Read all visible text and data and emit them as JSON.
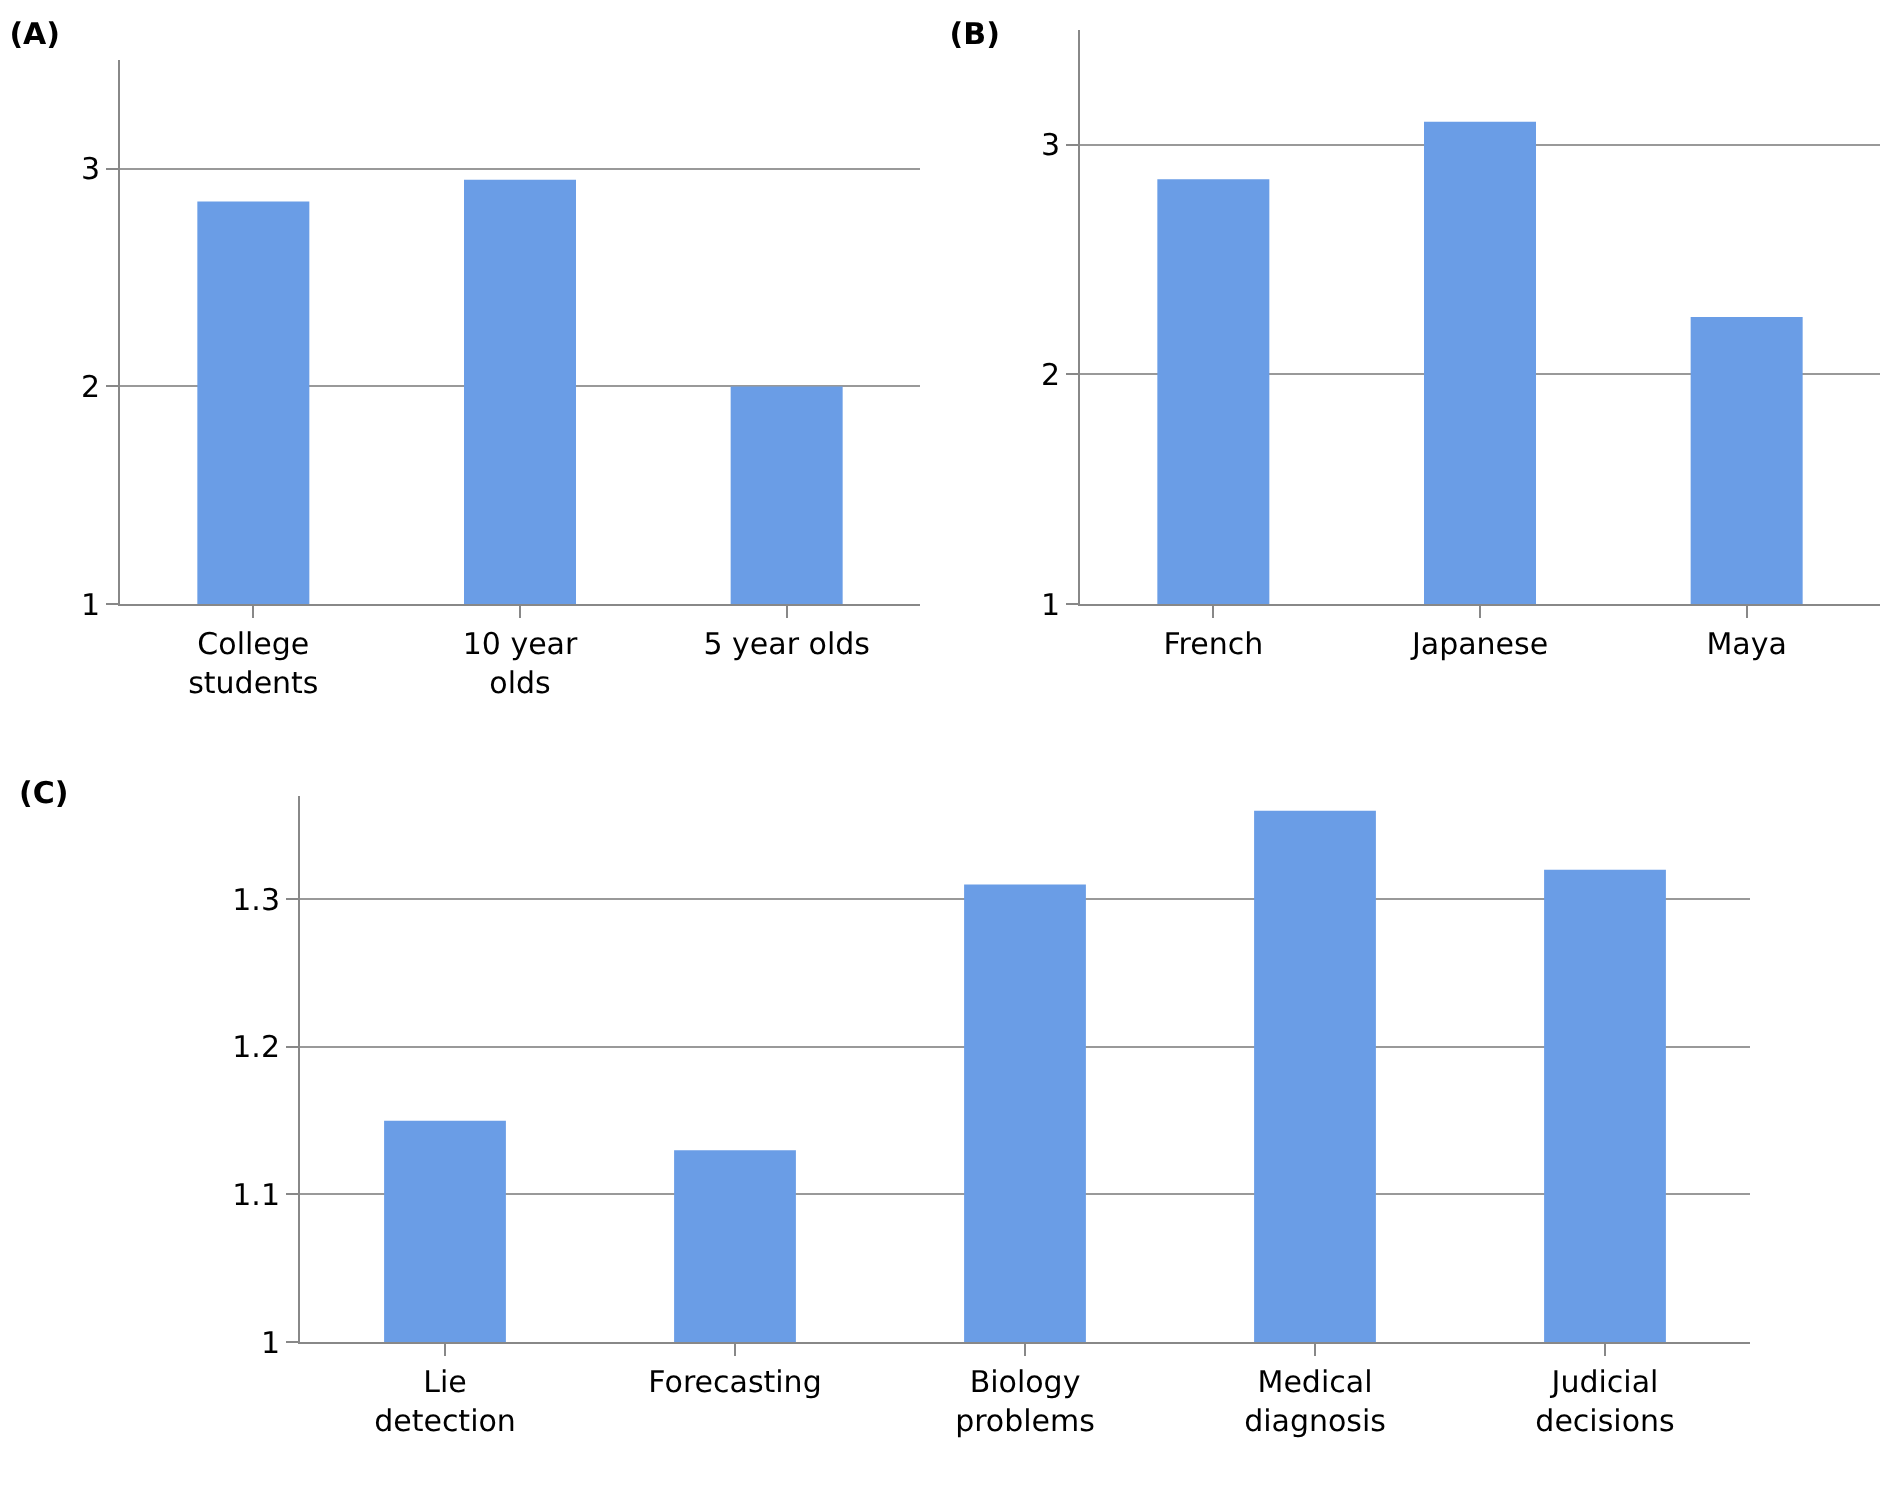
{
  "chart_data": [
    {
      "type": "bar",
      "title": "(A)",
      "categories": [
        "College\nstudents",
        "10 year\nolds",
        "5 year olds"
      ],
      "values": [
        2.85,
        2.95,
        2.0
      ],
      "color": "#6a9de6",
      "ylim": [
        1,
        3.5
      ],
      "yticks": [
        1,
        2,
        3
      ],
      "grid": "y"
    },
    {
      "type": "bar",
      "title": "(B)",
      "categories": [
        "French",
        "Japanese",
        "Maya"
      ],
      "values": [
        2.85,
        3.1,
        2.25
      ],
      "color": "#6a9de6",
      "ylim": [
        1,
        3.5
      ],
      "yticks": [
        1,
        2,
        3
      ],
      "grid": "y"
    },
    {
      "type": "bar",
      "title": "(C)",
      "categories": [
        "Lie\ndetection",
        "Forecasting",
        "Biology\nproblems",
        "Medical\ndiagnosis",
        "Judicial\ndecisions"
      ],
      "values": [
        1.15,
        1.13,
        1.31,
        1.36,
        1.32
      ],
      "color": "#6a9de6",
      "ylim": [
        1,
        1.37
      ],
      "yticks": [
        1,
        1.1,
        1.2,
        1.3
      ],
      "grid": "y"
    }
  ]
}
